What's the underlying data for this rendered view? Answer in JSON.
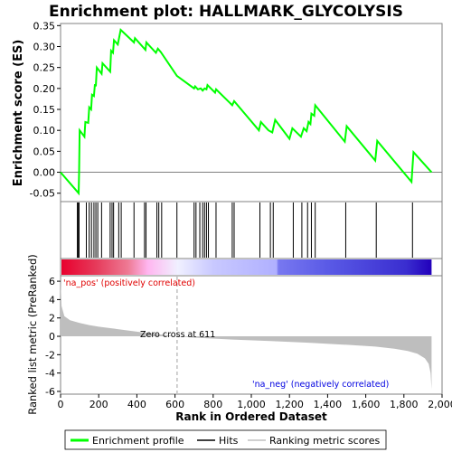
{
  "chart_data": {
    "type": "line",
    "title": "Enrichment plot: HALLMARK_GLYCOLYSIS",
    "x_range": [
      0,
      2000
    ],
    "x_ticks": [
      "0",
      "200",
      "400",
      "600",
      "800",
      "1,000",
      "1,200",
      "1,400",
      "1,600",
      "1,800",
      "2,000"
    ],
    "xlabel": "Rank in Ordered Dataset",
    "es_panel": {
      "ylabel": "Enrichment score (ES)",
      "y_range": [
        -0.07,
        0.355
      ],
      "y_ticks": [
        "-0.05",
        "0.00",
        "0.05",
        "0.10",
        "0.15",
        "0.20",
        "0.25",
        "0.30",
        "0.35"
      ],
      "line_color": "#00ff00",
      "points": [
        [
          0,
          0.0
        ],
        [
          95,
          -0.05
        ],
        [
          97,
          0.0
        ],
        [
          100,
          0.1
        ],
        [
          125,
          0.085
        ],
        [
          130,
          0.12
        ],
        [
          145,
          0.118
        ],
        [
          150,
          0.155
        ],
        [
          160,
          0.15
        ],
        [
          165,
          0.185
        ],
        [
          175,
          0.182
        ],
        [
          180,
          0.21
        ],
        [
          185,
          0.205
        ],
        [
          190,
          0.25
        ],
        [
          215,
          0.235
        ],
        [
          220,
          0.26
        ],
        [
          260,
          0.24
        ],
        [
          265,
          0.29
        ],
        [
          275,
          0.285
        ],
        [
          280,
          0.315
        ],
        [
          300,
          0.305
        ],
        [
          315,
          0.34
        ],
        [
          385,
          0.31
        ],
        [
          390,
          0.32
        ],
        [
          445,
          0.292
        ],
        [
          450,
          0.31
        ],
        [
          500,
          0.285
        ],
        [
          510,
          0.295
        ],
        [
          525,
          0.287
        ],
        [
          610,
          0.23
        ],
        [
          700,
          0.2
        ],
        [
          705,
          0.205
        ],
        [
          720,
          0.198
        ],
        [
          735,
          0.2
        ],
        [
          745,
          0.195
        ],
        [
          755,
          0.2
        ],
        [
          765,
          0.198
        ],
        [
          770,
          0.208
        ],
        [
          810,
          0.19
        ],
        [
          815,
          0.198
        ],
        [
          900,
          0.16
        ],
        [
          910,
          0.17
        ],
        [
          1040,
          0.1
        ],
        [
          1050,
          0.12
        ],
        [
          1090,
          0.1
        ],
        [
          1110,
          0.095
        ],
        [
          1125,
          0.125
        ],
        [
          1200,
          0.08
        ],
        [
          1215,
          0.105
        ],
        [
          1260,
          0.085
        ],
        [
          1275,
          0.105
        ],
        [
          1290,
          0.098
        ],
        [
          1300,
          0.12
        ],
        [
          1310,
          0.115
        ],
        [
          1315,
          0.14
        ],
        [
          1330,
          0.135
        ],
        [
          1335,
          0.16
        ],
        [
          1490,
          0.073
        ],
        [
          1500,
          0.11
        ],
        [
          1650,
          0.028
        ],
        [
          1660,
          0.075
        ],
        [
          1840,
          -0.023
        ],
        [
          1850,
          0.048
        ],
        [
          1945,
          0.0
        ]
      ]
    },
    "hits_panel": {
      "hit_positions": [
        88,
        93,
        97,
        135,
        150,
        162,
        175,
        185,
        195,
        215,
        260,
        270,
        278,
        305,
        318,
        385,
        440,
        448,
        505,
        515,
        530,
        610,
        700,
        710,
        730,
        745,
        755,
        765,
        775,
        815,
        900,
        910,
        1045,
        1100,
        1115,
        1220,
        1265,
        1295,
        1315,
        1335,
        1495,
        1655,
        1845
      ]
    },
    "heatmap_bar": {
      "stops": [
        {
          "rank": 0,
          "color": "#e8002e"
        },
        {
          "rank": 180,
          "color": "#e63a5a"
        },
        {
          "rank": 350,
          "color": "#ee7a94"
        },
        {
          "rank": 455,
          "color": "#ffb6f0"
        },
        {
          "rank": 611,
          "color": "#f0f0ff"
        },
        {
          "rank": 800,
          "color": "#c8c8ff"
        },
        {
          "rank": 1130,
          "color": "#b0b0ff"
        },
        {
          "rank": 1140,
          "color": "#7878f0"
        },
        {
          "rank": 1400,
          "color": "#5a5ae6"
        },
        {
          "rank": 1810,
          "color": "#3a2ed0"
        },
        {
          "rank": 1945,
          "color": "#2200bb"
        }
      ]
    },
    "metric_panel": {
      "ylabel": "Ranked list metric (PreRanked)",
      "y_range": [
        -6.3,
        6.6
      ],
      "y_ticks": [
        "-6",
        "-4",
        "-2",
        "0",
        "2",
        "4",
        "6"
      ],
      "zero_cross_label": "Zero cross at 611",
      "zero_cross_rank": 611,
      "pos_label": "'na_pos' (positively correlated)",
      "neg_label": "'na_neg' (negatively correlated)",
      "points": [
        [
          0,
          6.2
        ],
        [
          5,
          3.3
        ],
        [
          20,
          2.2
        ],
        [
          50,
          1.75
        ],
        [
          100,
          1.45
        ],
        [
          150,
          1.22
        ],
        [
          200,
          1.05
        ],
        [
          300,
          0.78
        ],
        [
          400,
          0.5
        ],
        [
          500,
          0.25
        ],
        [
          611,
          0.0
        ],
        [
          700,
          -0.15
        ],
        [
          900,
          -0.35
        ],
        [
          1100,
          -0.52
        ],
        [
          1300,
          -0.7
        ],
        [
          1500,
          -0.92
        ],
        [
          1650,
          -1.12
        ],
        [
          1750,
          -1.35
        ],
        [
          1820,
          -1.6
        ],
        [
          1870,
          -1.9
        ],
        [
          1910,
          -2.4
        ],
        [
          1930,
          -3.0
        ],
        [
          1940,
          -4.0
        ],
        [
          1945,
          -5.8
        ]
      ]
    },
    "legend": {
      "items": [
        {
          "label": "Enrichment profile",
          "color": "#00ff00"
        },
        {
          "label": "Hits",
          "color": "#000000"
        },
        {
          "label": "Ranking metric scores",
          "color": "#c0c0c0"
        }
      ]
    }
  }
}
